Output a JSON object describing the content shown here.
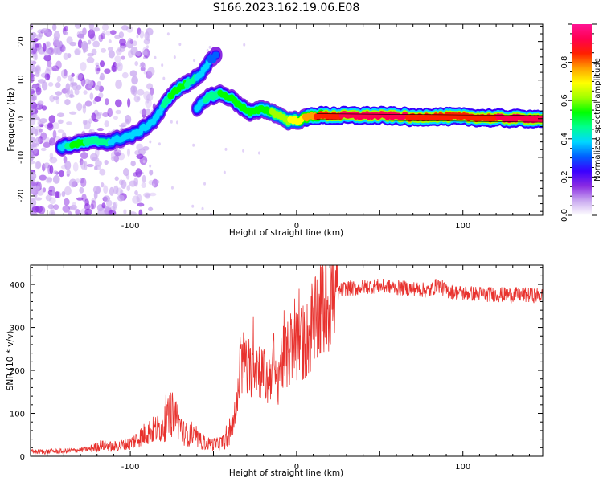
{
  "title": "S166.2023.162.19.06.E08",
  "chart_data": [
    {
      "type": "heatmap",
      "xlabel": "Height of straight line (km)",
      "ylabel": "Frequency (Hz)",
      "xlim": [
        -160,
        148
      ],
      "ylim": [
        -25,
        24.5
      ],
      "xticks": [
        -100,
        0,
        100
      ],
      "yticks": [
        -20,
        -10,
        0,
        10,
        20
      ],
      "colorbar": {
        "label": "Normalized spectral amplitude",
        "ticks": [
          0.0,
          0.2,
          0.4,
          0.6,
          0.8
        ],
        "range": [
          0,
          1
        ],
        "colormap": [
          "#ffffff",
          "#c9a8f0",
          "#8a2be2",
          "#3a00ff",
          "#0060ff",
          "#00d8ff",
          "#00ff90",
          "#00ff00",
          "#a0ff00",
          "#ffff00",
          "#ffa000",
          "#ff2000",
          "#ff0050",
          "#ff1493"
        ]
      },
      "ridge": [
        {
          "x": -142,
          "y": -7.3,
          "a": 0.35
        },
        {
          "x": -135,
          "y": -6.8,
          "a": 0.5
        },
        {
          "x": -128,
          "y": -6.2,
          "a": 0.5
        },
        {
          "x": -120,
          "y": -5.8,
          "a": 0.45
        },
        {
          "x": -112,
          "y": -6.0,
          "a": 0.42
        },
        {
          "x": -104,
          "y": -4.8,
          "a": 0.4
        },
        {
          "x": -97,
          "y": -4.0,
          "a": 0.42
        },
        {
          "x": -92,
          "y": -2.5,
          "a": 0.38
        },
        {
          "x": -86,
          "y": -0.5,
          "a": 0.4
        },
        {
          "x": -81,
          "y": 2.5,
          "a": 0.42
        },
        {
          "x": -76,
          "y": 6.0,
          "a": 0.5
        },
        {
          "x": -70,
          "y": 8.2,
          "a": 0.55
        },
        {
          "x": -64,
          "y": 9.5,
          "a": 0.45
        },
        {
          "x": -58,
          "y": 11.5,
          "a": 0.4
        },
        {
          "x": -53,
          "y": 14.5,
          "a": 0.35
        },
        {
          "x": -48,
          "y": 16.5,
          "a": 0.3
        }
      ],
      "ridge2": [
        {
          "x": -60,
          "y": 2.5,
          "a": 0.35
        },
        {
          "x": -54,
          "y": 5.5,
          "a": 0.45
        },
        {
          "x": -46,
          "y": 6.5,
          "a": 0.5
        },
        {
          "x": -40,
          "y": 5.5,
          "a": 0.5
        },
        {
          "x": -34,
          "y": 3.5,
          "a": 0.5
        },
        {
          "x": -28,
          "y": 1.5,
          "a": 0.5
        },
        {
          "x": -20,
          "y": 2.5,
          "a": 0.55
        },
        {
          "x": -12,
          "y": 1.2,
          "a": 0.6
        },
        {
          "x": -5,
          "y": -0.5,
          "a": 0.65
        },
        {
          "x": 2,
          "y": -0.3,
          "a": 0.7
        },
        {
          "x": 10,
          "y": 0.8,
          "a": 0.8
        },
        {
          "x": 30,
          "y": 0.8,
          "a": 0.9
        },
        {
          "x": 50,
          "y": 0.8,
          "a": 0.9
        },
        {
          "x": 65,
          "y": 0.6,
          "a": 0.9
        },
        {
          "x": 70,
          "y": 0.2,
          "a": 0.85
        },
        {
          "x": 80,
          "y": 0.6,
          "a": 0.85
        },
        {
          "x": 95,
          "y": 0.5,
          "a": 0.85
        },
        {
          "x": 110,
          "y": 0.3,
          "a": 0.85
        },
        {
          "x": 125,
          "y": 0.1,
          "a": 0.9
        },
        {
          "x": 148,
          "y": 0.0,
          "a": 0.95
        }
      ]
    },
    {
      "type": "line",
      "xlabel": "Height of straight line (km)",
      "ylabel": "SNR (10 * v/v)",
      "xlim": [
        -160,
        148
      ],
      "ylim": [
        0,
        445
      ],
      "xticks": [
        -100,
        0,
        100
      ],
      "yticks": [
        0,
        100,
        200,
        300,
        400
      ],
      "color": "#e8322e",
      "series": [
        {
          "x": [
            -160,
            -140,
            -125,
            -118,
            -110,
            -100,
            -90,
            -80,
            -76,
            -72,
            -68,
            -62,
            -55,
            -48,
            -43,
            -40,
            -36,
            -34,
            -31,
            -29,
            -26,
            -23,
            -20,
            -17,
            -14,
            -12,
            -10,
            -6,
            -2,
            2,
            6,
            10,
            14,
            18,
            22,
            26,
            30,
            35,
            40,
            50,
            60,
            70,
            80,
            85,
            90,
            100,
            110,
            120,
            130,
            140,
            148
          ],
          "y": [
            10,
            12,
            16,
            25,
            22,
            30,
            55,
            70,
            95,
            90,
            55,
            45,
            30,
            28,
            35,
            50,
            110,
            200,
            230,
            180,
            230,
            210,
            190,
            170,
            230,
            150,
            220,
            230,
            250,
            260,
            270,
            300,
            330,
            355,
            370,
            385,
            392,
            390,
            395,
            396,
            392,
            390,
            385,
            400,
            385,
            380,
            378,
            376,
            376,
            375,
            374
          ]
        }
      ]
    }
  ]
}
